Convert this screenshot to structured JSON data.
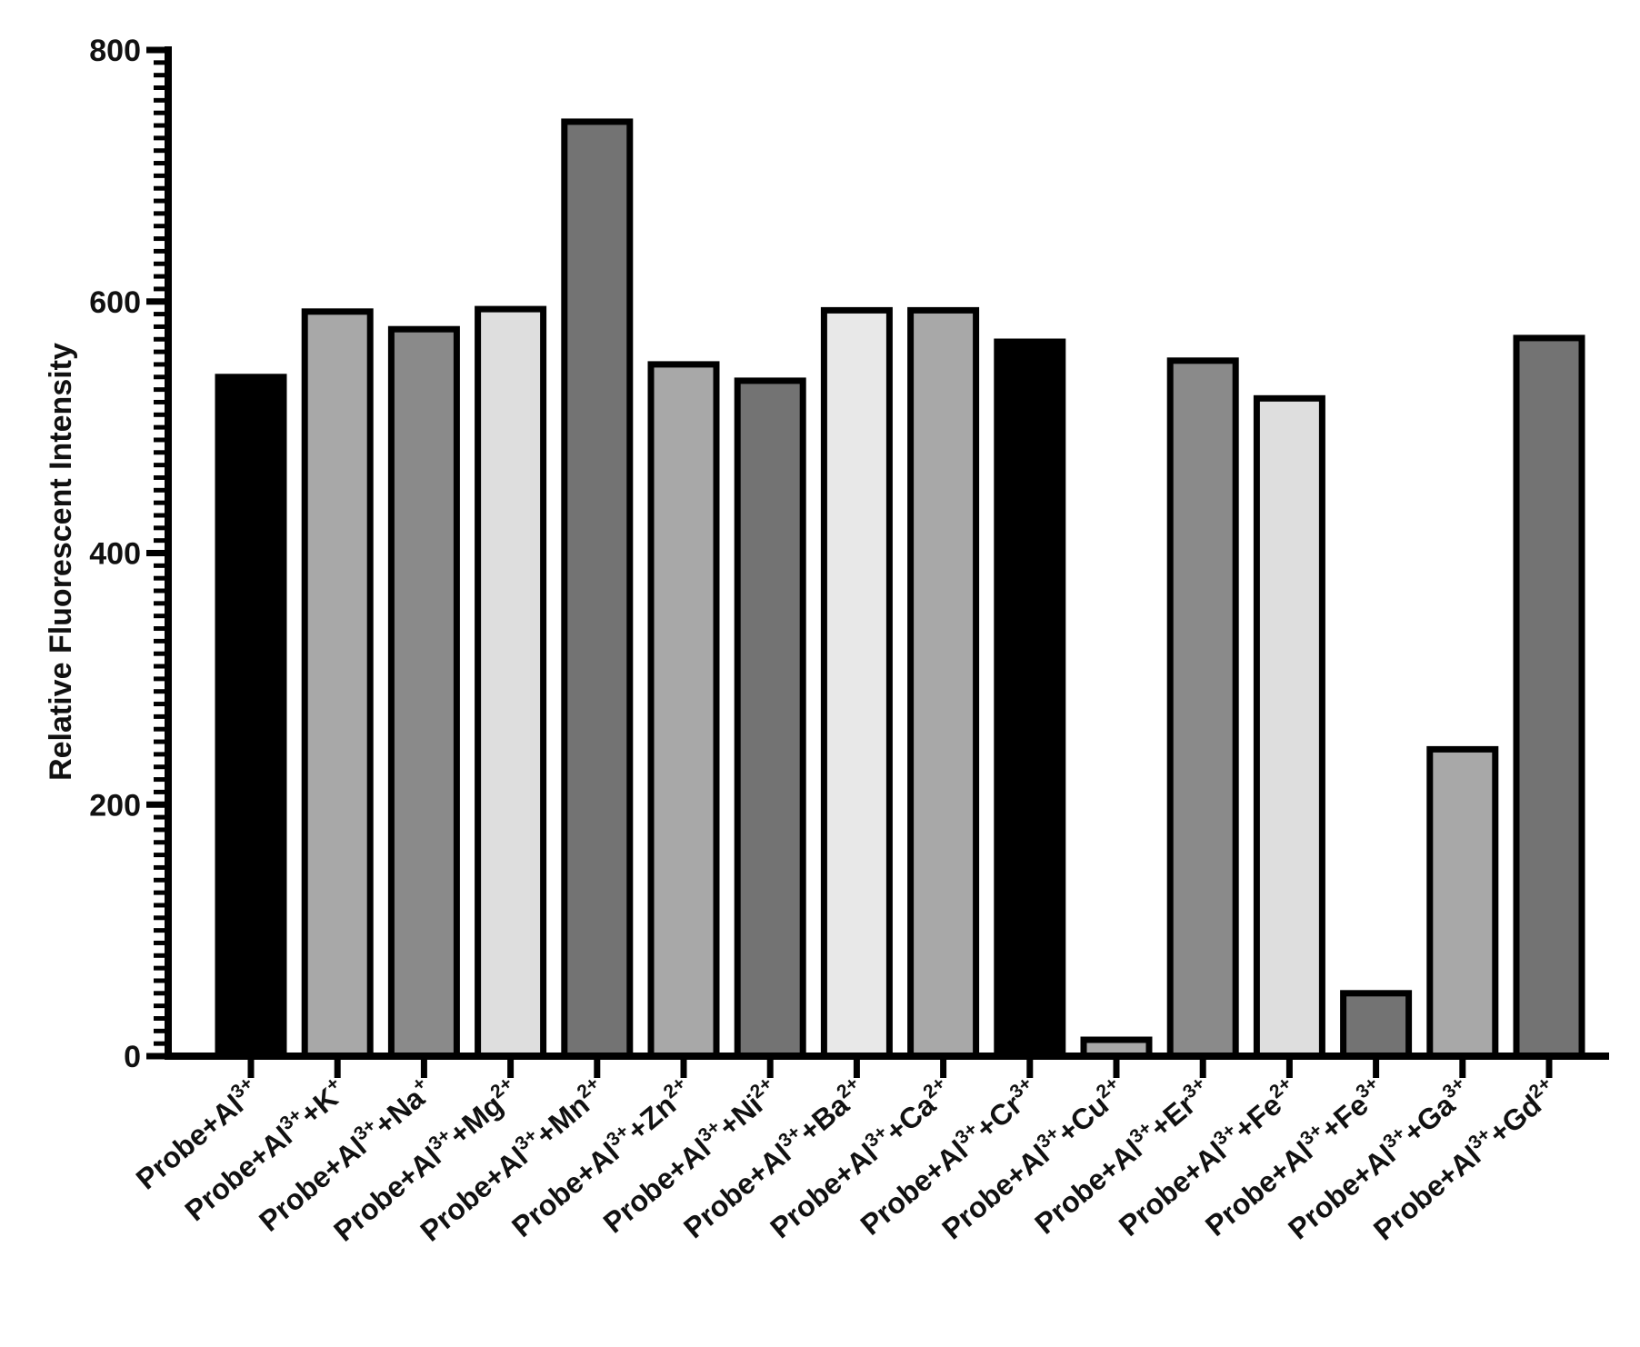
{
  "chart_data": {
    "type": "bar",
    "title": "",
    "xlabel": "",
    "ylabel": "Relative Fluorescent Intensity",
    "ylim": [
      0,
      800
    ],
    "y_ticks": [
      "0",
      "200",
      "400",
      "600",
      "800"
    ],
    "y_tick_values": [
      0,
      200,
      400,
      600,
      800
    ],
    "y_minor_step": 10,
    "grid": false,
    "legend": "none",
    "categories": [
      {
        "prefix": "Probe+Al",
        "sup": "3+",
        "suffix": "",
        "suffix_sup": ""
      },
      {
        "prefix": "Probe+Al",
        "sup": "3+",
        "suffix": "+K",
        "suffix_sup": "+"
      },
      {
        "prefix": "Probe+Al",
        "sup": "3+",
        "suffix": "+Na",
        "suffix_sup": "+"
      },
      {
        "prefix": "Probe+Al",
        "sup": "3+",
        "suffix": "+Mg",
        "suffix_sup": "2+"
      },
      {
        "prefix": "Probe+Al",
        "sup": "3+",
        "suffix": "+Mn",
        "suffix_sup": "2+"
      },
      {
        "prefix": "Probe+Al",
        "sup": "3+",
        "suffix": "+Zn",
        "suffix_sup": "2+"
      },
      {
        "prefix": "Probe+Al",
        "sup": "3+",
        "suffix": "+Ni",
        "suffix_sup": "2+"
      },
      {
        "prefix": "Probe+Al",
        "sup": "3+",
        "suffix": "+Ba",
        "suffix_sup": "2+"
      },
      {
        "prefix": "Probe+Al",
        "sup": "3+",
        "suffix": "+Ca",
        "suffix_sup": "2+"
      },
      {
        "prefix": "Probe+Al",
        "sup": "3+",
        "suffix": "+Cr",
        "suffix_sup": "3+"
      },
      {
        "prefix": "Probe+Al",
        "sup": "3+",
        "suffix": "+Cu",
        "suffix_sup": "2+"
      },
      {
        "prefix": "Probe+Al",
        "sup": "3+",
        "suffix": "+Er",
        "suffix_sup": "3+"
      },
      {
        "prefix": "Probe+Al",
        "sup": "3+",
        "suffix": "+Fe",
        "suffix_sup": "2+"
      },
      {
        "prefix": "Probe+Al",
        "sup": "3+",
        "suffix": "+Fe",
        "suffix_sup": "3+"
      },
      {
        "prefix": "Probe+Al",
        "sup": "3+",
        "suffix": "+Ga",
        "suffix_sup": "3+"
      },
      {
        "prefix": "Probe+Al",
        "sup": "3+",
        "suffix": "+Gd",
        "suffix_sup": "2+"
      }
    ],
    "values": [
      540,
      592,
      578,
      594,
      743,
      550,
      537,
      593,
      593,
      568,
      13,
      553,
      523,
      50,
      244,
      571
    ],
    "colors": [
      "#000000",
      "#a8a8a8",
      "#8a8a8a",
      "#dedede",
      "#737373",
      "#a8a8a8",
      "#737373",
      "#e8e8e8",
      "#a8a8a8",
      "#000000",
      "#a8a8a8",
      "#8a8a8a",
      "#dedede",
      "#737373",
      "#a8a8a8",
      "#737373"
    ],
    "bar_outline_color": "#000000"
  }
}
